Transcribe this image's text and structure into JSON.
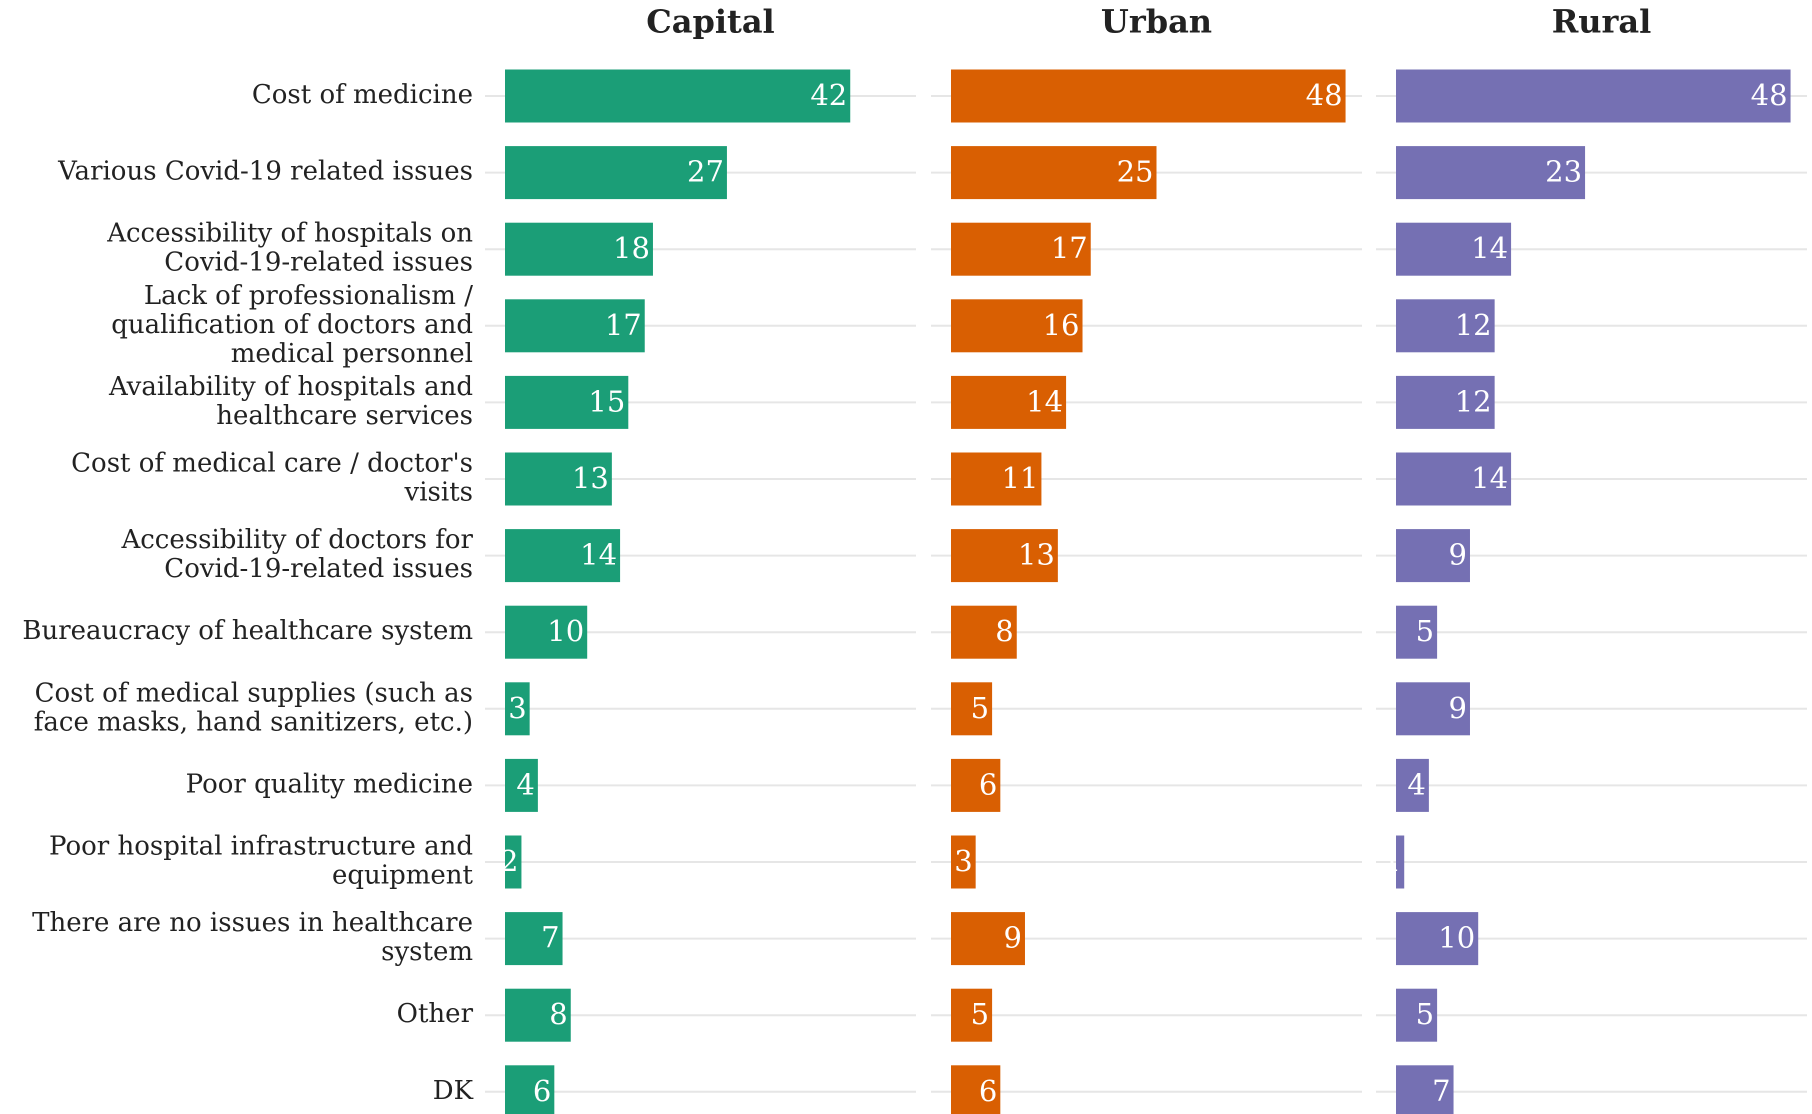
{
  "chart_data": {
    "type": "bar",
    "orientation": "horizontal",
    "categories": [
      "Cost of medicine",
      "Various Covid-19 related issues",
      "Accessibility of hospitals on\nCovid-19-related issues",
      "Lack of professionalism /\nqualification of doctors and\nmedical personnel",
      "Availability of hospitals and\nhealthcare services",
      "Cost of medical care / doctor's\nvisits",
      "Accessibility of doctors for\nCovid-19-related issues",
      "Bureaucracy of healthcare system",
      "Cost of medical supplies (such as\nface masks, hand sanitizers, etc.)",
      "Poor quality medicine",
      "Poor hospital infrastructure and\nequipment",
      "There are no issues in healthcare\nsystem",
      "Other",
      "DK"
    ],
    "series": [
      {
        "name": "Capital",
        "color": "#1b9e77",
        "values": [
          42,
          27,
          18,
          17,
          15,
          13,
          14,
          10,
          3,
          4,
          2,
          7,
          8,
          6
        ]
      },
      {
        "name": "Urban",
        "color": "#d95f02",
        "values": [
          48,
          25,
          17,
          16,
          14,
          11,
          13,
          8,
          5,
          6,
          3,
          9,
          5,
          6
        ]
      },
      {
        "name": "Rural",
        "color": "#7570b3",
        "values": [
          48,
          23,
          14,
          12,
          12,
          14,
          9,
          5,
          9,
          4,
          1,
          10,
          5,
          7
        ]
      }
    ],
    "xlim": [
      0,
      50
    ],
    "grid": true
  }
}
